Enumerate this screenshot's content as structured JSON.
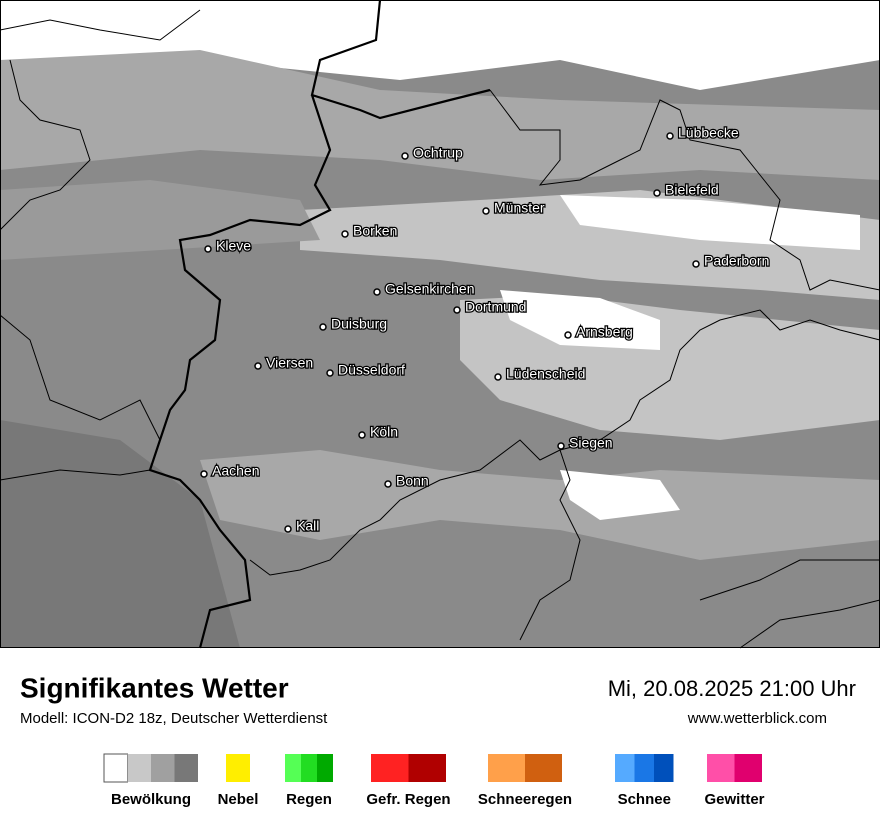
{
  "map": {
    "cities": [
      "Lübbecke",
      "Ochtrup",
      "Bielefeld",
      "Münster",
      "Borken",
      "Kleve",
      "Paderborn",
      "Gelsenkirchen",
      "Dortmund",
      "Duisburg",
      "Arnsberg",
      "Viersen",
      "Düsseldorf",
      "Lüdenscheid",
      "Köln",
      "Siegen",
      "Aachen",
      "Bonn",
      "Kall"
    ]
  },
  "footer": {
    "title": "Signifikantes Wetter",
    "model": "Modell: ICON-D2 18z, Deutscher Wetterdienst",
    "datetime": "Mi, 20.08.2025 21:00 Uhr",
    "url": "www.wetterblick.com"
  },
  "legend": [
    {
      "label": "Bewölkung",
      "colors": [
        "#ffffff",
        "#c8c8c8",
        "#a0a0a0",
        "#787878"
      ]
    },
    {
      "label": "Nebel",
      "colors": [
        "#ffee00"
      ]
    },
    {
      "label": "Regen",
      "colors": [
        "#55ff55",
        "#22dd22",
        "#00aa00"
      ]
    },
    {
      "label": "Gefr. Regen",
      "colors": [
        "#ff2222",
        "#b00000"
      ]
    },
    {
      "label": "Schneeregen",
      "colors": [
        "#ffa04a",
        "#d06010"
      ]
    },
    {
      "label": "Schnee",
      "colors": [
        "#55aaff",
        "#1a77e6",
        "#0050bb"
      ]
    },
    {
      "label": "Gewitter",
      "colors": [
        "#ff4fa8",
        "#e0006e"
      ]
    }
  ]
}
